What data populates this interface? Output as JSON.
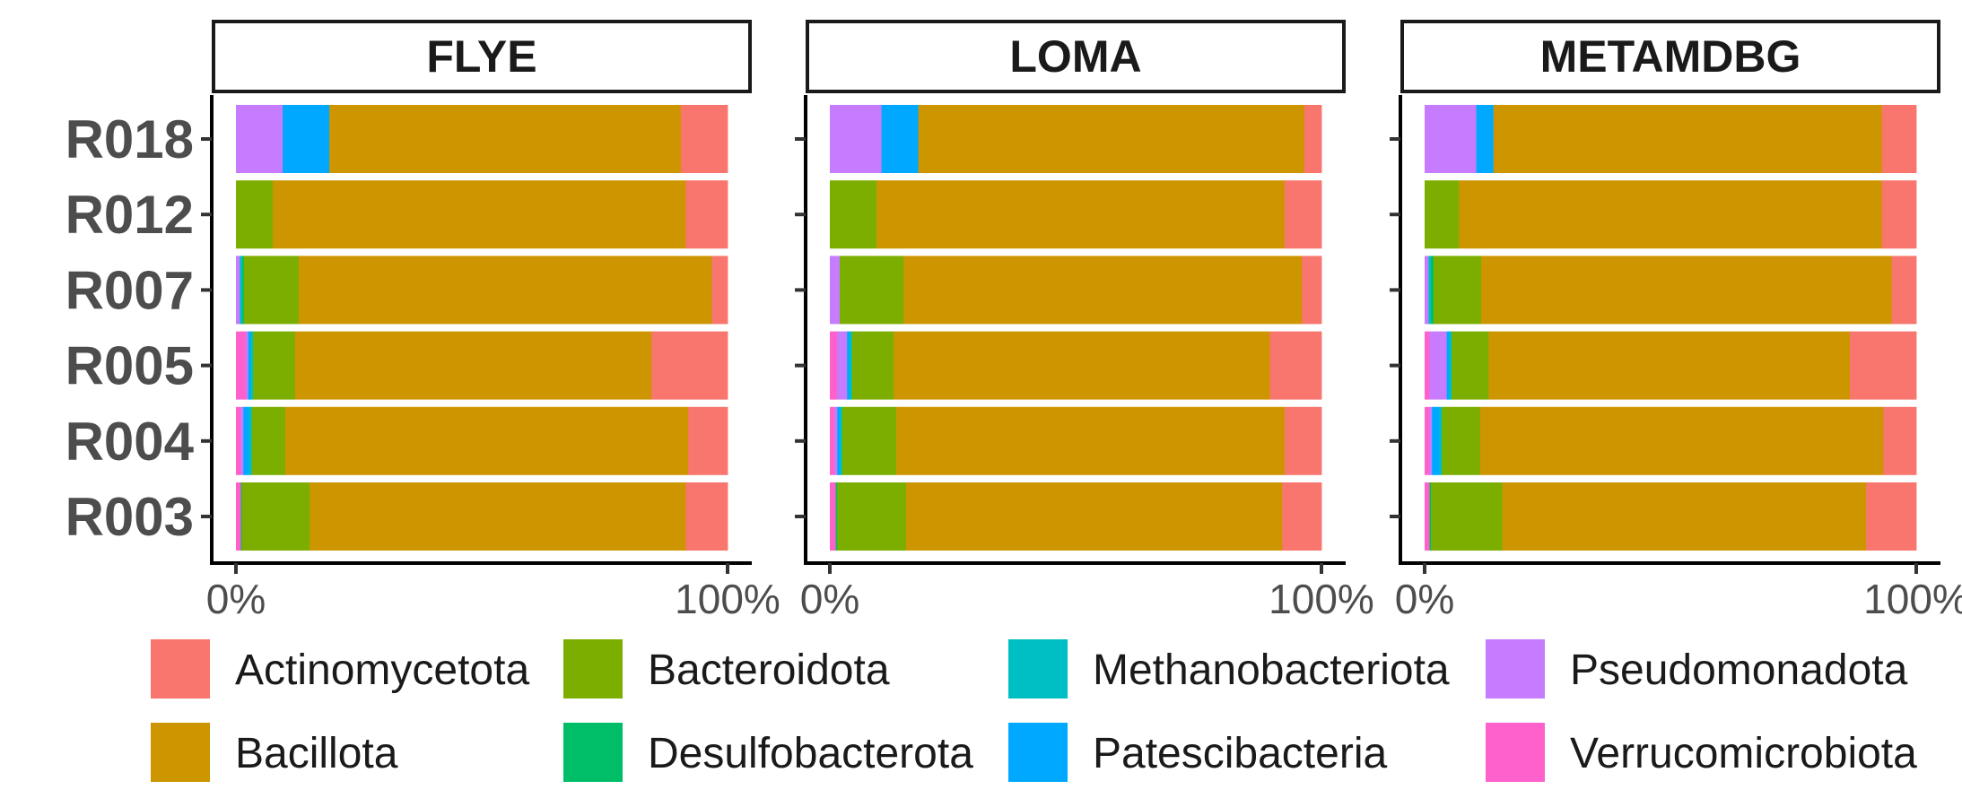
{
  "chart_data": {
    "type": "bar",
    "orientation": "horizontal",
    "stacked": true,
    "normalized": true,
    "facets": [
      "FLYE",
      "LOMA",
      "METAMDBG"
    ],
    "categories": [
      "R018",
      "R012",
      "R007",
      "R005",
      "R004",
      "R003"
    ],
    "x_tick_labels": [
      "0%",
      "100%"
    ],
    "xlim": [
      0,
      100
    ],
    "grid": false,
    "legend_position": "bottom",
    "series": [
      {
        "name": "Verrucomicrobiota",
        "color": "#FF61CC"
      },
      {
        "name": "Pseudomonadota",
        "color": "#C77CFF"
      },
      {
        "name": "Patescibacteria",
        "color": "#00A9FF"
      },
      {
        "name": "Methanobacteriota",
        "color": "#00BFC4"
      },
      {
        "name": "Desulfobacterota",
        "color": "#00BE67"
      },
      {
        "name": "Bacteroidota",
        "color": "#7CAE00"
      },
      {
        "name": "Bacillota",
        "color": "#CD9600"
      },
      {
        "name": "Actinomycetota",
        "color": "#F8766D"
      }
    ],
    "legend_order": [
      "Actinomycetota",
      "Bacteroidota",
      "Methanobacteriota",
      "Pseudomonadota",
      "Bacillota",
      "Desulfobacterota",
      "Patescibacteria",
      "Verrucomicrobiota"
    ],
    "values": {
      "FLYE": {
        "R018": {
          "Verrucomicrobiota": 0,
          "Pseudomonadota": 9.5,
          "Patescibacteria": 9.5,
          "Methanobacteriota": 0,
          "Desulfobacterota": 0,
          "Bacteroidota": 0,
          "Bacillota": 71.5,
          "Actinomycetota": 9.5
        },
        "R012": {
          "Verrucomicrobiota": 0,
          "Pseudomonadota": 0,
          "Patescibacteria": 0,
          "Methanobacteriota": 0,
          "Desulfobacterota": 0,
          "Bacteroidota": 7.5,
          "Bacillota": 84,
          "Actinomycetota": 8.5
        },
        "R007": {
          "Verrucomicrobiota": 0,
          "Pseudomonadota": 0.8,
          "Patescibacteria": 0,
          "Methanobacteriota": 0.5,
          "Desulfobacterota": 0.3,
          "Bacteroidota": 11.2,
          "Bacillota": 84,
          "Actinomycetota": 3.2
        },
        "R005": {
          "Verrucomicrobiota": 2,
          "Pseudomonadota": 0.5,
          "Patescibacteria": 0.5,
          "Methanobacteriota": 0.5,
          "Desulfobacterota": 0,
          "Bacteroidota": 8.5,
          "Bacillota": 72.5,
          "Actinomycetota": 15.5
        },
        "R004": {
          "Verrucomicrobiota": 1,
          "Pseudomonadota": 0.5,
          "Patescibacteria": 1.2,
          "Methanobacteriota": 0.5,
          "Desulfobacterota": 0,
          "Bacteroidota": 6.8,
          "Bacillota": 82,
          "Actinomycetota": 8
        },
        "R003": {
          "Verrucomicrobiota": 1,
          "Pseudomonadota": 0,
          "Patescibacteria": 0,
          "Methanobacteriota": 0,
          "Desulfobacterota": 0.2,
          "Bacteroidota": 13.8,
          "Bacillota": 76.5,
          "Actinomycetota": 8.5
        }
      },
      "LOMA": {
        "R018": {
          "Verrucomicrobiota": 0,
          "Pseudomonadota": 10.5,
          "Patescibacteria": 7.5,
          "Methanobacteriota": 0,
          "Desulfobacterota": 0,
          "Bacteroidota": 0,
          "Bacillota": 78.5,
          "Actinomycetota": 3.5
        },
        "R012": {
          "Verrucomicrobiota": 0,
          "Pseudomonadota": 0,
          "Patescibacteria": 0,
          "Methanobacteriota": 0,
          "Desulfobacterota": 0,
          "Bacteroidota": 9.5,
          "Bacillota": 83,
          "Actinomycetota": 7.5
        },
        "R007": {
          "Verrucomicrobiota": 0,
          "Pseudomonadota": 2,
          "Patescibacteria": 0,
          "Methanobacteriota": 0,
          "Desulfobacterota": 0,
          "Bacteroidota": 13,
          "Bacillota": 81,
          "Actinomycetota": 4
        },
        "R005": {
          "Verrucomicrobiota": 1.5,
          "Pseudomonadota": 2,
          "Patescibacteria": 0.5,
          "Methanobacteriota": 0.5,
          "Desulfobacterota": 0,
          "Bacteroidota": 8.5,
          "Bacillota": 76.5,
          "Actinomycetota": 10.5
        },
        "R004": {
          "Verrucomicrobiota": 1,
          "Pseudomonadota": 0.5,
          "Patescibacteria": 0.5,
          "Methanobacteriota": 0.5,
          "Desulfobacterota": 0,
          "Bacteroidota": 11,
          "Bacillota": 79,
          "Actinomycetota": 7.5
        },
        "R003": {
          "Verrucomicrobiota": 1.2,
          "Pseudomonadota": 0,
          "Patescibacteria": 0,
          "Methanobacteriota": 0,
          "Desulfobacterota": 0.3,
          "Bacteroidota": 14,
          "Bacillota": 76.5,
          "Actinomycetota": 8
        }
      },
      "METAMDBG": {
        "R018": {
          "Verrucomicrobiota": 0,
          "Pseudomonadota": 10.5,
          "Patescibacteria": 3.5,
          "Methanobacteriota": 0,
          "Desulfobacterota": 0,
          "Bacteroidota": 0,
          "Bacillota": 79,
          "Actinomycetota": 7
        },
        "R012": {
          "Verrucomicrobiota": 0,
          "Pseudomonadota": 0,
          "Patescibacteria": 0,
          "Methanobacteriota": 0,
          "Desulfobacterota": 0,
          "Bacteroidota": 7,
          "Bacillota": 86,
          "Actinomycetota": 7
        },
        "R007": {
          "Verrucomicrobiota": 0,
          "Pseudomonadota": 0.8,
          "Patescibacteria": 0,
          "Methanobacteriota": 0.5,
          "Desulfobacterota": 0.5,
          "Bacteroidota": 9.7,
          "Bacillota": 83.5,
          "Actinomycetota": 5
        },
        "R005": {
          "Verrucomicrobiota": 1,
          "Pseudomonadota": 3.5,
          "Patescibacteria": 0.5,
          "Methanobacteriota": 0.5,
          "Desulfobacterota": 0,
          "Bacteroidota": 7.5,
          "Bacillota": 73.5,
          "Actinomycetota": 13.5
        },
        "R004": {
          "Verrucomicrobiota": 1,
          "Pseudomonadota": 0.5,
          "Patescibacteria": 1.5,
          "Methanobacteriota": 0.5,
          "Desulfobacterota": 0,
          "Bacteroidota": 7.8,
          "Bacillota": 82,
          "Actinomycetota": 6.7
        },
        "R003": {
          "Verrucomicrobiota": 1,
          "Pseudomonadota": 0,
          "Patescibacteria": 0,
          "Methanobacteriota": 0,
          "Desulfobacterota": 0.3,
          "Bacteroidota": 14.5,
          "Bacillota": 74,
          "Actinomycetota": 10.2
        }
      }
    }
  }
}
